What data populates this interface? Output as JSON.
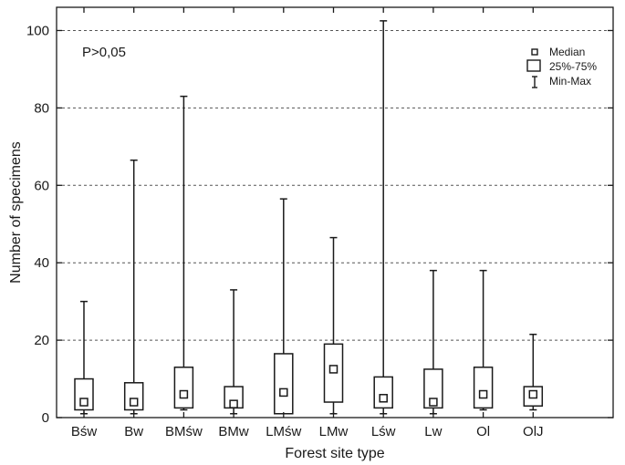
{
  "chart_data": {
    "type": "boxplot",
    "title": "",
    "xlabel": "Forest site type",
    "ylabel": "Number of specimens",
    "ylim": [
      0,
      106
    ],
    "yticks": [
      0,
      20,
      40,
      60,
      80,
      100
    ],
    "grid": "horizontal dashed",
    "annotation": "P>0,05",
    "legend": {
      "position": "top-right",
      "entries": [
        {
          "symbol": "median-square",
          "label": "Median"
        },
        {
          "symbol": "box",
          "label": "25%-75%"
        },
        {
          "symbol": "whisker",
          "label": "Min-Max"
        }
      ]
    },
    "categories": [
      "Bśw",
      "Bw",
      "BMśw",
      "BMw",
      "LMśw",
      "LMw",
      "Lśw",
      "Lw",
      "Ol",
      "OlJ"
    ],
    "series": [
      {
        "min": [
          1,
          1,
          2,
          1,
          1,
          1,
          1,
          1,
          2,
          2
        ],
        "q1": [
          2,
          2,
          2.5,
          2.5,
          1,
          4,
          2.5,
          2.5,
          2.5,
          3
        ],
        "median": [
          4,
          4,
          6,
          3.5,
          6.5,
          12.5,
          5,
          4,
          6,
          6
        ],
        "q3": [
          10,
          9,
          13,
          8,
          16.5,
          19,
          10.5,
          12.5,
          13,
          8
        ],
        "max": [
          30,
          66.5,
          83,
          33,
          56.5,
          46.5,
          102.5,
          38,
          38,
          21.5
        ]
      }
    ]
  },
  "colors": {
    "line": "#1a1a1a",
    "grid": "#555555",
    "background": "#ffffff"
  }
}
